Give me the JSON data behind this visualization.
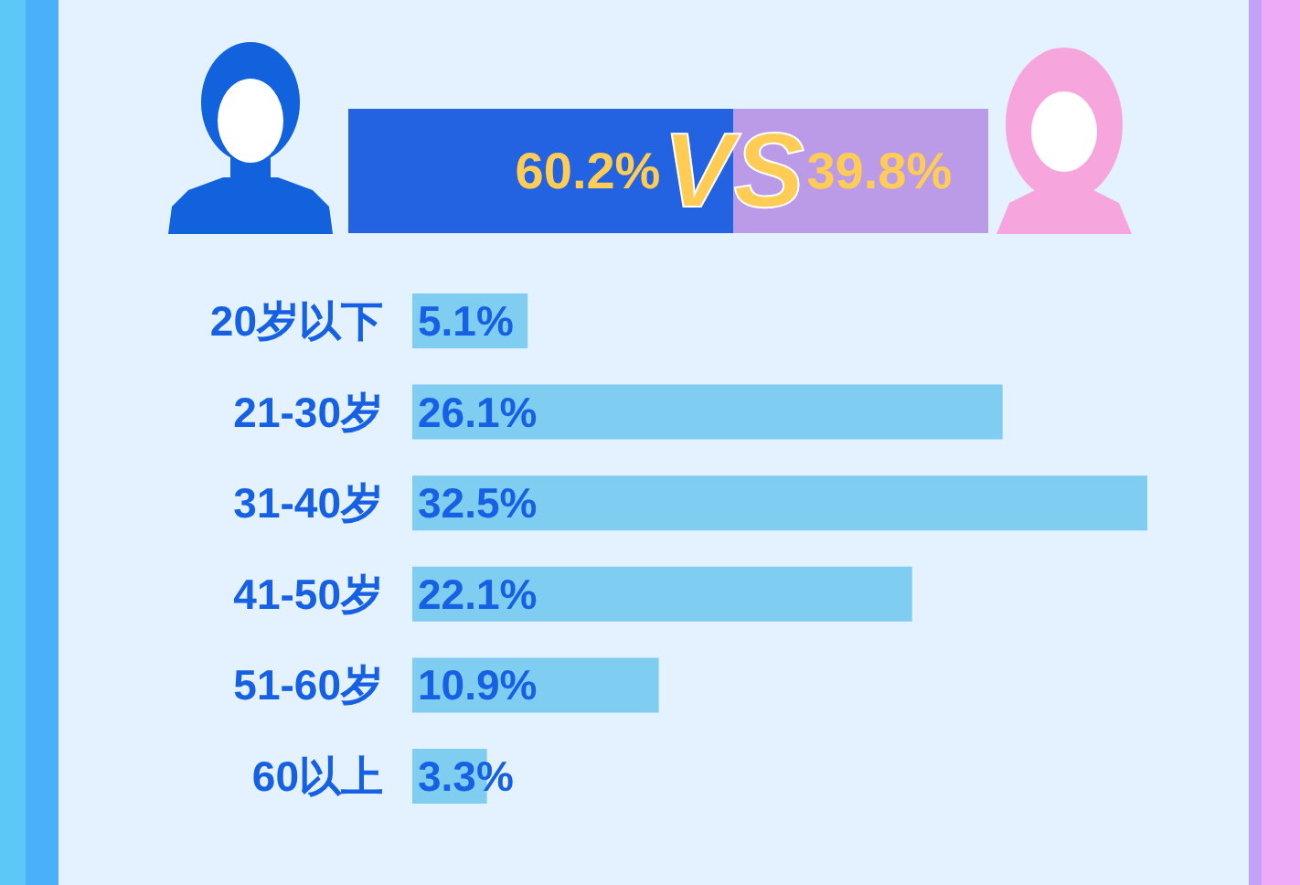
{
  "chart_data": [
    {
      "type": "bar",
      "orientation": "horizontal",
      "stacked": true,
      "categories": [
        null
      ],
      "series": [
        {
          "color": "#2363e2",
          "values": [
            60.2
          ],
          "value_labels": [
            "60.2%"
          ]
        },
        {
          "color": "#bb9ae8",
          "values": [
            39.8
          ],
          "value_labels": [
            "39.8%"
          ]
        }
      ],
      "annotations": [
        "VS"
      ]
    },
    {
      "type": "bar",
      "orientation": "horizontal",
      "categories": [
        "20岁以下",
        "21-30岁",
        "31-40岁",
        "41-50岁",
        "51-60岁",
        "60以上"
      ],
      "values": [
        5.1,
        26.1,
        32.5,
        22.1,
        10.9,
        3.3
      ],
      "color": "#7fcdf0",
      "value_labels": [
        "5.1%",
        "26.1%",
        "32.5%",
        "22.1%",
        "10.9%",
        "3.3%"
      ]
    }
  ]
}
